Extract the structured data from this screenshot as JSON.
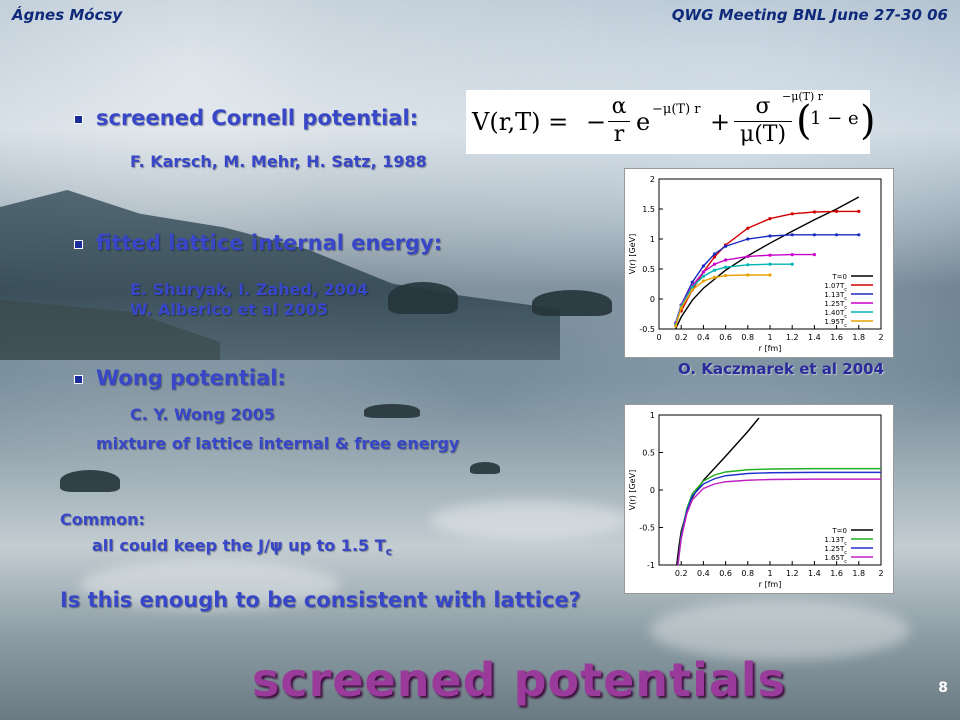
{
  "header": {
    "author": "Ágnes Mócsy",
    "meeting": "QWG Meeting BNL June 27-30 06"
  },
  "bullets": [
    {
      "label": "screened Cornell potential:",
      "refs": [
        "F. Karsch, M. Mehr, H. Satz, 1988"
      ]
    },
    {
      "label": "fitted lattice internal energy:",
      "refs": [
        "E. Shuryak, I. Zahed, 2004",
        "W. Alberico et al 2005"
      ]
    },
    {
      "label": "Wong potential:",
      "refs": [
        "C. Y. Wong 2005",
        "mixture of lattice internal & free energy"
      ]
    }
  ],
  "common": {
    "label": "Common:",
    "text_pre": "all could keep the J/",
    "psi": "ψ",
    "text_mid": " up to 1.5 T",
    "sub": "c"
  },
  "question": "Is this enough to be consistent with lattice?",
  "title": "screened potentials",
  "page_number": "8",
  "formula": {
    "lhs": "V(r,T) =",
    "minus": "−",
    "frac1_num": "α",
    "frac1_den": "r",
    "exp1": "e",
    "exp1_sup": "−μ(T) r",
    "plus": "+",
    "frac2_num": "σ",
    "frac2_den": "μ(T)",
    "paren_open": "(",
    "one_minus": "1 − e",
    "exp2_sup": "−μ(T) r",
    "paren_close": ")"
  },
  "caption_top": "O. Kaczmarek et al 2004",
  "colors": {
    "accent": "#3846c8",
    "title": "#9a3a9a"
  },
  "chart_data": [
    {
      "type": "line",
      "xlabel": "r [fm]",
      "ylabel": "V(r) [GeV]",
      "xlim": [
        0,
        2
      ],
      "ylim": [
        -0.5,
        2
      ],
      "xticks": [
        "0",
        "0.2",
        "0.4",
        "0.6",
        "0.8",
        "1",
        "1.2",
        "1.4",
        "1.6",
        "1.8",
        "2"
      ],
      "yticks": [
        "-0.5",
        "0",
        "0.5",
        "1",
        "1.5",
        "2"
      ],
      "legend_position": "bottom-right",
      "series": [
        {
          "name": "T=0",
          "color": "#000000",
          "x": [
            0.15,
            0.2,
            0.3,
            0.4,
            0.6,
            0.8,
            1.0,
            1.2,
            1.4,
            1.6,
            1.8
          ],
          "y": [
            -0.5,
            -0.3,
            -0.02,
            0.18,
            0.48,
            0.72,
            0.93,
            1.13,
            1.32,
            1.5,
            1.7
          ]
        },
        {
          "name": "1.07T",
          "sub": "c",
          "color": "#d40000",
          "x": [
            0.2,
            0.3,
            0.4,
            0.5,
            0.6,
            0.8,
            1.0,
            1.2,
            1.4,
            1.6,
            1.8
          ],
          "y": [
            -0.2,
            0.15,
            0.45,
            0.7,
            0.9,
            1.18,
            1.34,
            1.42,
            1.45,
            1.46,
            1.46
          ]
        },
        {
          "name": "1.13T",
          "sub": "c",
          "color": "#1a2bc0",
          "x": [
            0.15,
            0.2,
            0.3,
            0.4,
            0.5,
            0.6,
            0.8,
            1.0,
            1.2,
            1.4,
            1.6,
            1.8
          ],
          "y": [
            -0.4,
            -0.1,
            0.28,
            0.55,
            0.75,
            0.88,
            1.0,
            1.05,
            1.07,
            1.07,
            1.07,
            1.07
          ]
        },
        {
          "name": "1.25T",
          "sub": "c",
          "color": "#c800c8",
          "x": [
            0.15,
            0.2,
            0.3,
            0.4,
            0.5,
            0.6,
            0.8,
            1.0,
            1.2,
            1.4
          ],
          "y": [
            -0.4,
            -0.1,
            0.22,
            0.45,
            0.58,
            0.65,
            0.71,
            0.73,
            0.74,
            0.74
          ]
        },
        {
          "name": "1.40T",
          "sub": "c",
          "color": "#00b4b4",
          "x": [
            0.15,
            0.2,
            0.3,
            0.4,
            0.5,
            0.6,
            0.8,
            1.0,
            1.2
          ],
          "y": [
            -0.42,
            -0.12,
            0.2,
            0.38,
            0.48,
            0.53,
            0.57,
            0.58,
            0.58
          ]
        },
        {
          "name": "1.95T",
          "sub": "c",
          "color": "#e6a000",
          "x": [
            0.15,
            0.2,
            0.3,
            0.4,
            0.5,
            0.6,
            0.8,
            1.0
          ],
          "y": [
            -0.45,
            -0.15,
            0.15,
            0.3,
            0.36,
            0.39,
            0.4,
            0.4
          ]
        }
      ]
    },
    {
      "type": "line",
      "xlabel": "r [fm]",
      "ylabel": "V(r) [GeV]",
      "xlim": [
        0,
        2
      ],
      "ylim": [
        -1,
        1
      ],
      "xticks": [
        "0.2",
        "0.4",
        "0.6",
        "0.8",
        "1",
        "1.2",
        "1.4",
        "1.6",
        "1.8",
        "2"
      ],
      "yticks": [
        "-1",
        "-0.5",
        "0",
        "0.5",
        "1"
      ],
      "legend_position": "bottom-right",
      "series": [
        {
          "name": "T=0",
          "color": "#000000",
          "x": [
            0.16,
            0.18,
            0.2,
            0.25,
            0.3,
            0.4,
            0.6,
            0.8,
            0.9
          ],
          "y": [
            -1.0,
            -0.75,
            -0.55,
            -0.28,
            -0.1,
            0.13,
            0.45,
            0.78,
            0.96
          ]
        },
        {
          "name": "1.13T",
          "sub": "c",
          "color": "#20b020",
          "x": [
            0.17,
            0.2,
            0.25,
            0.3,
            0.4,
            0.5,
            0.6,
            0.8,
            1.0,
            1.4,
            2.0
          ],
          "y": [
            -1.0,
            -0.6,
            -0.25,
            -0.05,
            0.12,
            0.2,
            0.24,
            0.27,
            0.28,
            0.285,
            0.285
          ]
        },
        {
          "name": "1.25T",
          "sub": "c",
          "color": "#2030d0",
          "x": [
            0.17,
            0.2,
            0.25,
            0.3,
            0.4,
            0.5,
            0.6,
            0.8,
            1.0,
            1.4,
            2.0
          ],
          "y": [
            -1.0,
            -0.62,
            -0.28,
            -0.08,
            0.08,
            0.15,
            0.19,
            0.22,
            0.23,
            0.235,
            0.235
          ]
        },
        {
          "name": "1.65T",
          "sub": "c",
          "color": "#c020c0",
          "x": [
            0.17,
            0.2,
            0.25,
            0.3,
            0.4,
            0.5,
            0.6,
            0.8,
            1.0,
            1.4,
            2.0
          ],
          "y": [
            -1.0,
            -0.65,
            -0.32,
            -0.13,
            0.02,
            0.08,
            0.11,
            0.13,
            0.14,
            0.145,
            0.145
          ]
        }
      ]
    }
  ]
}
